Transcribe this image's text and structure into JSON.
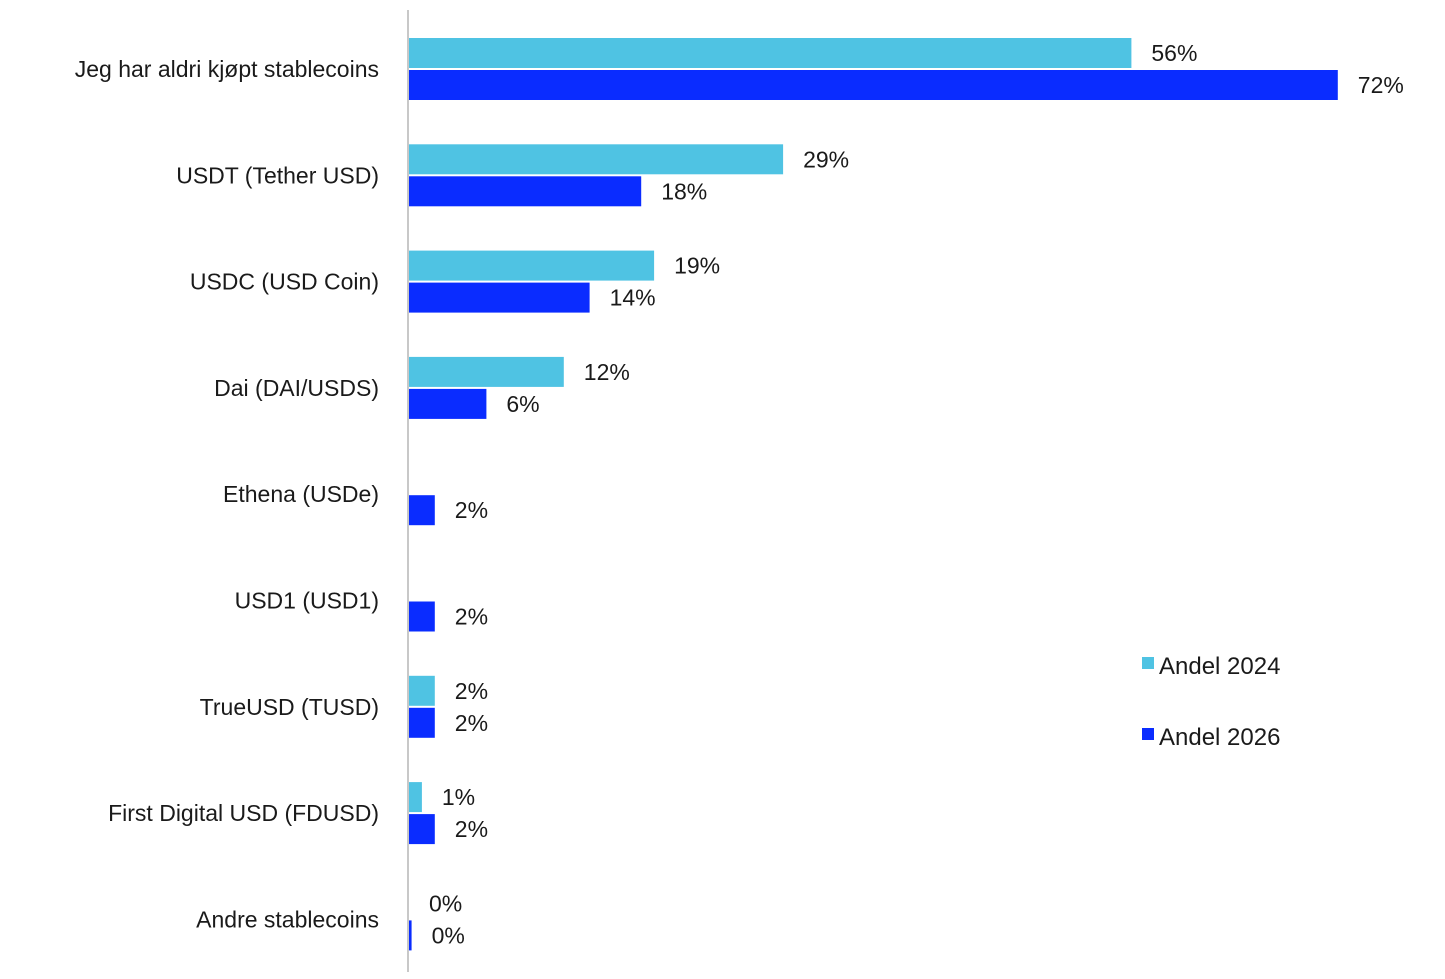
{
  "chart_data": {
    "type": "bar",
    "orientation": "horizontal",
    "title": "",
    "xlabel": "",
    "ylabel": "",
    "categories": [
      "Jeg har aldri kjøpt stablecoins",
      "USDT (Tether USD)",
      "USDC (USD Coin)",
      "Dai (DAI/USDS)",
      "Ethena (USDe)",
      "USD1 (USD1)",
      "TrueUSD (TUSD)",
      "First Digital USD (FDUSD)",
      "Andre stablecoins"
    ],
    "series": [
      {
        "name": "Andel 2024",
        "color": "#4fc3e3",
        "values": [
          56,
          29,
          19,
          12,
          null,
          null,
          2,
          1,
          0
        ],
        "labels": [
          "56%",
          "29%",
          "19%",
          "12%",
          null,
          null,
          "2%",
          "1%",
          "0%"
        ]
      },
      {
        "name": "Andel 2026",
        "color": "#0a2cff",
        "values": [
          72,
          18,
          14,
          6,
          2,
          2,
          2,
          2,
          0.2
        ],
        "labels": [
          "72%",
          "18%",
          "14%",
          "6%",
          "2%",
          "2%",
          "2%",
          "2%",
          "0%"
        ]
      }
    ],
    "xlim": [
      0,
      75
    ],
    "grid": false,
    "legend_position": "right-bottom",
    "axis_color": "#c8c8c8"
  }
}
